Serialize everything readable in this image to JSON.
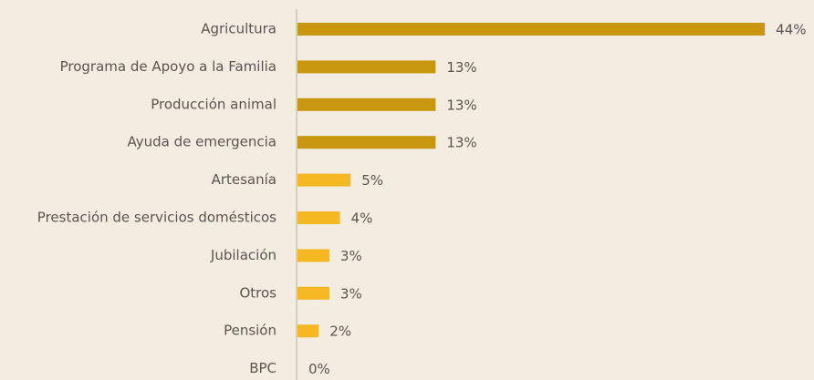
{
  "chart_data": {
    "type": "bar",
    "orientation": "horizontal",
    "categories": [
      "Agricultura",
      "Programa de Apoyo a la Familia",
      "Producción animal",
      "Ayuda de emergencia",
      "Artesanía",
      "Prestación de servicios domésticos",
      "Jubilación",
      "Otros",
      "Pensión",
      "BPC"
    ],
    "values": [
      44,
      13,
      13,
      13,
      5,
      4,
      3,
      3,
      2,
      0
    ],
    "value_labels": [
      "44%",
      "13%",
      "13%",
      "13%",
      "5%",
      "4%",
      "3%",
      "3%",
      "2%",
      "0%"
    ],
    "colors": [
      "#c8960f",
      "#c8960f",
      "#c8960f",
      "#c8960f",
      "#f5b822",
      "#f5b822",
      "#f5b822",
      "#f5b822",
      "#f5b822",
      "#f5b822"
    ]
  }
}
